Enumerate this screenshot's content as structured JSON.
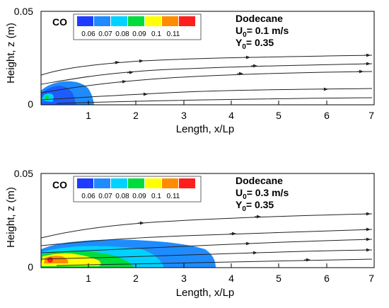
{
  "chart_data": [
    {
      "type": "contour",
      "variable": "CO",
      "ylabel": "Height, z (m)",
      "xlabel": "Length, x/Lp",
      "xlim": [
        0,
        7
      ],
      "ylim": [
        0,
        0.05
      ],
      "x_ticks": [
        "1",
        "2",
        "3",
        "4",
        "5",
        "6",
        "7"
      ],
      "y_ticks": [
        "0",
        "0.05"
      ],
      "legend": {
        "levels": [
          "0.06",
          "0.07",
          "0.08",
          "0.09",
          "0.1",
          "0.11"
        ],
        "colors": [
          "#1e3cff",
          "#1e8cff",
          "#00d2ff",
          "#00dc3c",
          "#ffff00",
          "#ff8c00",
          "#ff1e1e"
        ]
      },
      "annotation": {
        "fuel": "Dodecane",
        "u0_prefix": "U",
        "u0_sub": "0",
        "u0_value": "= 0.1 m/s",
        "y0_prefix": "Y",
        "y0_sub": "0",
        "y0_value": "= 0.35"
      },
      "streamlines_start_z": [
        0.015,
        0.012,
        0.009,
        0.005
      ],
      "streamlines_end_z": [
        0.026,
        0.022,
        0.018,
        0.006
      ],
      "flame_extent": {
        "x": [
          0,
          0.15,
          0.3,
          0.5,
          0.7,
          0.85,
          0.95,
          1.0
        ],
        "z_outer": [
          0.01,
          0.013,
          0.0135,
          0.014,
          0.013,
          0.011,
          0.007,
          0.002
        ],
        "z_inner": [
          0.006,
          0.008,
          0.007,
          0.005
        ],
        "x_inner": [
          0,
          0.1,
          0.25,
          0.4
        ]
      }
    },
    {
      "type": "contour",
      "variable": "CO",
      "ylabel": "Height, z (m)",
      "xlabel": "Length, x/Lp",
      "xlim": [
        0,
        7
      ],
      "ylim": [
        0,
        0.05
      ],
      "x_ticks": [
        "1",
        "2",
        "3",
        "4",
        "5",
        "6",
        "7"
      ],
      "y_ticks": [
        "0",
        "0.05"
      ],
      "legend": {
        "levels": [
          "0.06",
          "0.07",
          "0.08",
          "0.09",
          "0.1",
          "0.11"
        ],
        "colors": [
          "#1e3cff",
          "#1e8cff",
          "#00d2ff",
          "#00dc3c",
          "#ffff00",
          "#ff8c00",
          "#ff1e1e"
        ]
      },
      "annotation": {
        "fuel": "Dodecane",
        "u0_prefix": "U",
        "u0_sub": "0",
        "u0_value": "= 0.3 m/s",
        "y0_prefix": "Y",
        "y0_sub": "0",
        "y0_value": "= 0.35"
      },
      "streamlines_start_z": [
        0.017,
        0.012,
        0.009,
        0.006,
        0.003
      ],
      "streamlines_end_z": [
        0.028,
        0.022,
        0.017,
        0.012,
        0.006
      ],
      "flame_extent": {
        "x": [
          0,
          0.5,
          1.0,
          1.5,
          2.0,
          2.5,
          3.0,
          3.3,
          3.6
        ],
        "z_outer": [
          0.01,
          0.013,
          0.014,
          0.0145,
          0.014,
          0.013,
          0.011,
          0.008,
          0.003
        ]
      }
    }
  ]
}
